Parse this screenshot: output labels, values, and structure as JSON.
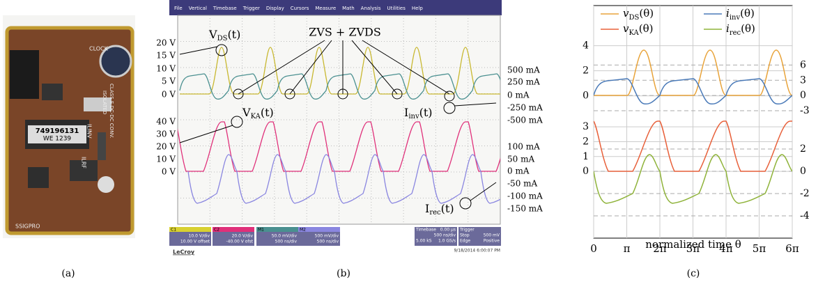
{
  "panel_a": {
    "caption": "(a)",
    "board_labels": [
      "749196131",
      "WE 1239",
      "CLOCK",
      "ISOLATED",
      "CLASS E DC-DC CONV.",
      "ILINV",
      "ILRF",
      "SSIGPRO"
    ]
  },
  "panel_b": {
    "caption": "(b)",
    "menu": [
      "File",
      "Vertical",
      "Timebase",
      "Trigger",
      "Display",
      "Cursors",
      "Measure",
      "Math",
      "Analysis",
      "Utilities",
      "Help"
    ],
    "left_labels_top": [
      "20 V",
      "15 V",
      "10 V",
      "5 V",
      "0 V"
    ],
    "left_labels_bottom": [
      "40 V",
      "30 V",
      "20 V",
      "10 V",
      "0 V"
    ],
    "right_labels_top": [
      "500 mA",
      "250 mA",
      "0 mA",
      "-250 mA",
      "-500 mA"
    ],
    "right_labels_bottom": [
      "100 mA",
      "50 mA",
      "0 mA",
      "-50 mA",
      "-100 mA",
      "-150 mA"
    ],
    "annotations": {
      "vds": {
        "symbol": "V",
        "subscript": "DS",
        "argument": "(t)"
      },
      "zvs": "ZVS + ZVDS",
      "vka": {
        "symbol": "V",
        "subscript": "KA",
        "argument": "(t)"
      },
      "iinv": {
        "symbol": "I",
        "subscript": "inv",
        "argument": "(t)"
      },
      "irec": {
        "symbol": "I",
        "subscript": "rec",
        "argument": "(t)"
      }
    },
    "channels": [
      {
        "name": "C1",
        "line1": "10.0 V/div",
        "line2": "10.00 V offset"
      },
      {
        "name": "C2",
        "line1": "20.0 V/div",
        "line2": "-40.00 V ofst"
      },
      {
        "name": "M1",
        "line1": "50.0 mV/div",
        "line2": "500 ns/div"
      },
      {
        "name": "M2",
        "line1": "500 mV/div",
        "line2": "500 ns/div"
      }
    ],
    "timebase": {
      "name": "Timebase",
      "value": "0.00 µs",
      "line1": "500 ns/div",
      "line2a": "5.00 kS",
      "line2b": "1.0 GS/s"
    },
    "trigger": {
      "name": "Trigger",
      "line1a": "Stop",
      "line1b": "500 mV",
      "line2a": "Edge",
      "line2b": "Positive"
    },
    "brand": "LeCroy",
    "timestamp": "9/18/2014 6:00:07 PM"
  },
  "panel_c": {
    "caption": "(c)",
    "type": "line",
    "xlabel": "normalized time θ",
    "xlim": [
      0,
      6
    ],
    "xticks": [
      0,
      {
        "value": 1,
        "label": "π"
      },
      {
        "value": 2,
        "label": "2π"
      },
      {
        "value": 3,
        "label": "3π"
      },
      {
        "value": 4,
        "label": "4π"
      },
      {
        "value": 5,
        "label": "5π"
      },
      {
        "value": 6,
        "label": "6π"
      }
    ],
    "upper": {
      "ylim": [
        -1.8,
        7.2
      ],
      "yticks": [
        0,
        2,
        4
      ],
      "y2lim": [
        -4.5,
        17.7
      ],
      "y2ticks": [
        6,
        3,
        0,
        -3
      ]
    },
    "lower": {
      "ylim": [
        -4.5,
        3.57
      ],
      "yticks": [
        0,
        1,
        2,
        3
      ],
      "y2lim": [
        -6,
        4.75
      ],
      "y2ticks": [
        2,
        0,
        -2,
        -4
      ]
    },
    "series": [
      {
        "symbol": "v",
        "subscript": "DS",
        "argument": "(θ)",
        "color": "#e8a33a"
      },
      {
        "symbol": "i",
        "subscript": "inv",
        "argument": "(θ)",
        "color": "#4a7ab8"
      },
      {
        "symbol": "v",
        "subscript": "KA",
        "argument": "(θ)",
        "color": "#e8603a"
      },
      {
        "symbol": "i",
        "subscript": "rec",
        "argument": "(θ)",
        "color": "#8fb33a"
      }
    ]
  }
}
